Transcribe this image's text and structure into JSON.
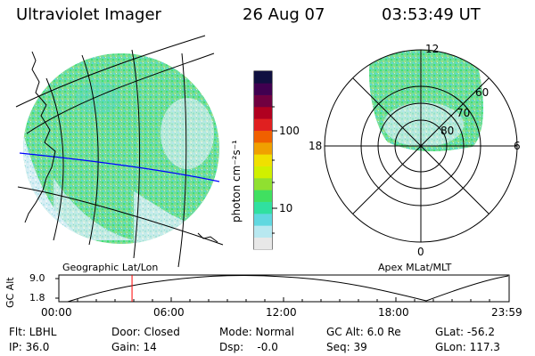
{
  "header": {
    "instrument": "Ultraviolet Imager",
    "date": "26 Aug 07",
    "time": "03:53:49 UT"
  },
  "colorbar": {
    "label": "photon cm⁻²s⁻¹",
    "ticks": [
      "100",
      "10"
    ],
    "colors": [
      "#e8e8e8",
      "#b8e8f0",
      "#60d8e0",
      "#30e0a0",
      "#40e060",
      "#90e030",
      "#d0f000",
      "#f0e000",
      "#f0a000",
      "#f06000",
      "#e02020",
      "#b00020",
      "#700040",
      "#400050",
      "#101040"
    ]
  },
  "geo_map": {
    "label": "Geographic Lat/Lon"
  },
  "polar_plot": {
    "label": "Apex MLat/MLT",
    "mlt_labels": {
      "top": "12",
      "left": "18",
      "right": "6",
      "bottom": "0"
    },
    "lat_labels": [
      "60",
      "70",
      "80"
    ]
  },
  "altitude_plot": {
    "ylabel": "GC Alt",
    "yticks": [
      "9.0",
      "1.8"
    ],
    "xticks": [
      "00:00",
      "06:00",
      "12:00",
      "18:00",
      "23:59"
    ],
    "marker_time_hours": 3.9
  },
  "info": {
    "filter": "Flt: LBHL",
    "ip": "IP: 36.0",
    "door": "Door: Closed",
    "gain": "Gain: 14",
    "mode": "Mode: Normal",
    "dsp": "Dsp:    -0.0",
    "gc_alt": "GC Alt: 6.0 Re",
    "seq": "Seq: 39",
    "glat": "GLat: -56.2",
    "glon": "GLon: 117.3"
  },
  "colors": {
    "accent_blue": "#0000ff",
    "marker_red": "#ff0000"
  }
}
